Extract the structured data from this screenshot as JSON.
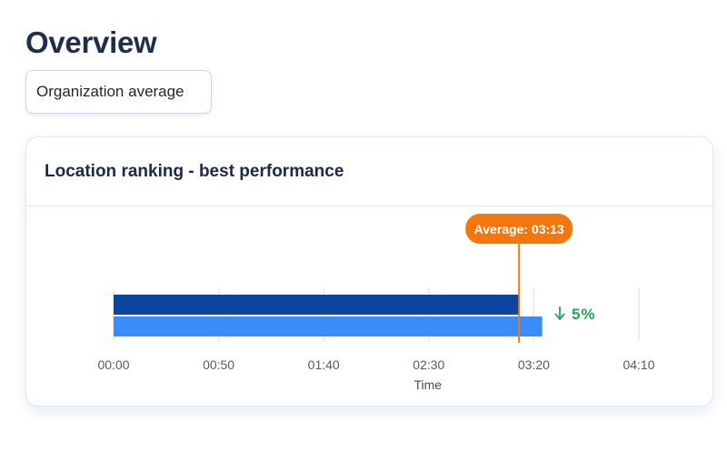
{
  "header": {
    "title": "Overview",
    "filter_label": "Organization average"
  },
  "card": {
    "title": "Location ranking - best performance"
  },
  "colors": {
    "bar_primary": "#0a459f",
    "bar_secondary": "#3a8cf8",
    "average": "#f5760a",
    "delta_good": "#27a35b",
    "grid": "#e3e6ec"
  },
  "chart_data": {
    "type": "bar",
    "orientation": "horizontal",
    "xlabel": "Time",
    "x_unit": "seconds",
    "xlim": [
      0,
      270
    ],
    "x_ticks": [
      0,
      50,
      100,
      150,
      200,
      250
    ],
    "x_tick_labels": [
      "00:00",
      "00:50",
      "01:40",
      "02:30",
      "03:20",
      "04:10"
    ],
    "series": [
      {
        "values": [
          193
        ],
        "color": "#0a459f"
      },
      {
        "values": [
          204
        ],
        "color": "#3a8cf8"
      }
    ],
    "average": {
      "value": 193,
      "label": "Average: 03:13"
    },
    "delta": {
      "direction": "down",
      "label": "5%"
    },
    "grid": true
  }
}
